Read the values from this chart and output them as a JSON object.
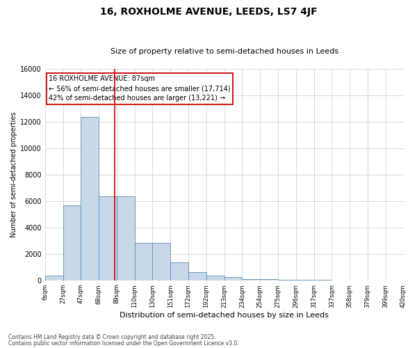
{
  "title": "16, ROXHOLME AVENUE, LEEDS, LS7 4JF",
  "subtitle": "Size of property relative to semi-detached houses in Leeds",
  "xlabel": "Distribution of semi-detached houses by size in Leeds",
  "ylabel": "Number of semi-detached properties",
  "annotation_text": "16 ROXHOLME AVENUE: 87sqm\n← 56% of semi-detached houses are smaller (17,714)\n42% of semi-detached houses are larger (13,221) →",
  "footer_line1": "Contains HM Land Registry data © Crown copyright and database right 2025.",
  "footer_line2": "Contains public sector information licensed under the Open Government Licence v3.0.",
  "bar_color": "#c8d8e8",
  "bar_edge_color": "#5b8db8",
  "vline_color": "#cc0000",
  "annotation_box_color": "#cc0000",
  "grid_color": "#cccccc",
  "background_color": "#ffffff",
  "bin_labels": [
    "6sqm",
    "27sqm",
    "47sqm",
    "68sqm",
    "89sqm",
    "110sqm",
    "130sqm",
    "151sqm",
    "172sqm",
    "192sqm",
    "213sqm",
    "234sqm",
    "254sqm",
    "275sqm",
    "296sqm",
    "317sqm",
    "337sqm",
    "358sqm",
    "379sqm",
    "399sqm",
    "420sqm"
  ],
  "counts": [
    350,
    5700,
    12400,
    6400,
    6400,
    2850,
    2850,
    1350,
    650,
    350,
    250,
    130,
    90,
    70,
    50,
    35,
    25,
    15,
    8,
    4
  ],
  "vline_pos": 3.905,
  "ylim": [
    0,
    16000
  ],
  "yticks": [
    0,
    2000,
    4000,
    6000,
    8000,
    10000,
    12000,
    14000,
    16000
  ]
}
